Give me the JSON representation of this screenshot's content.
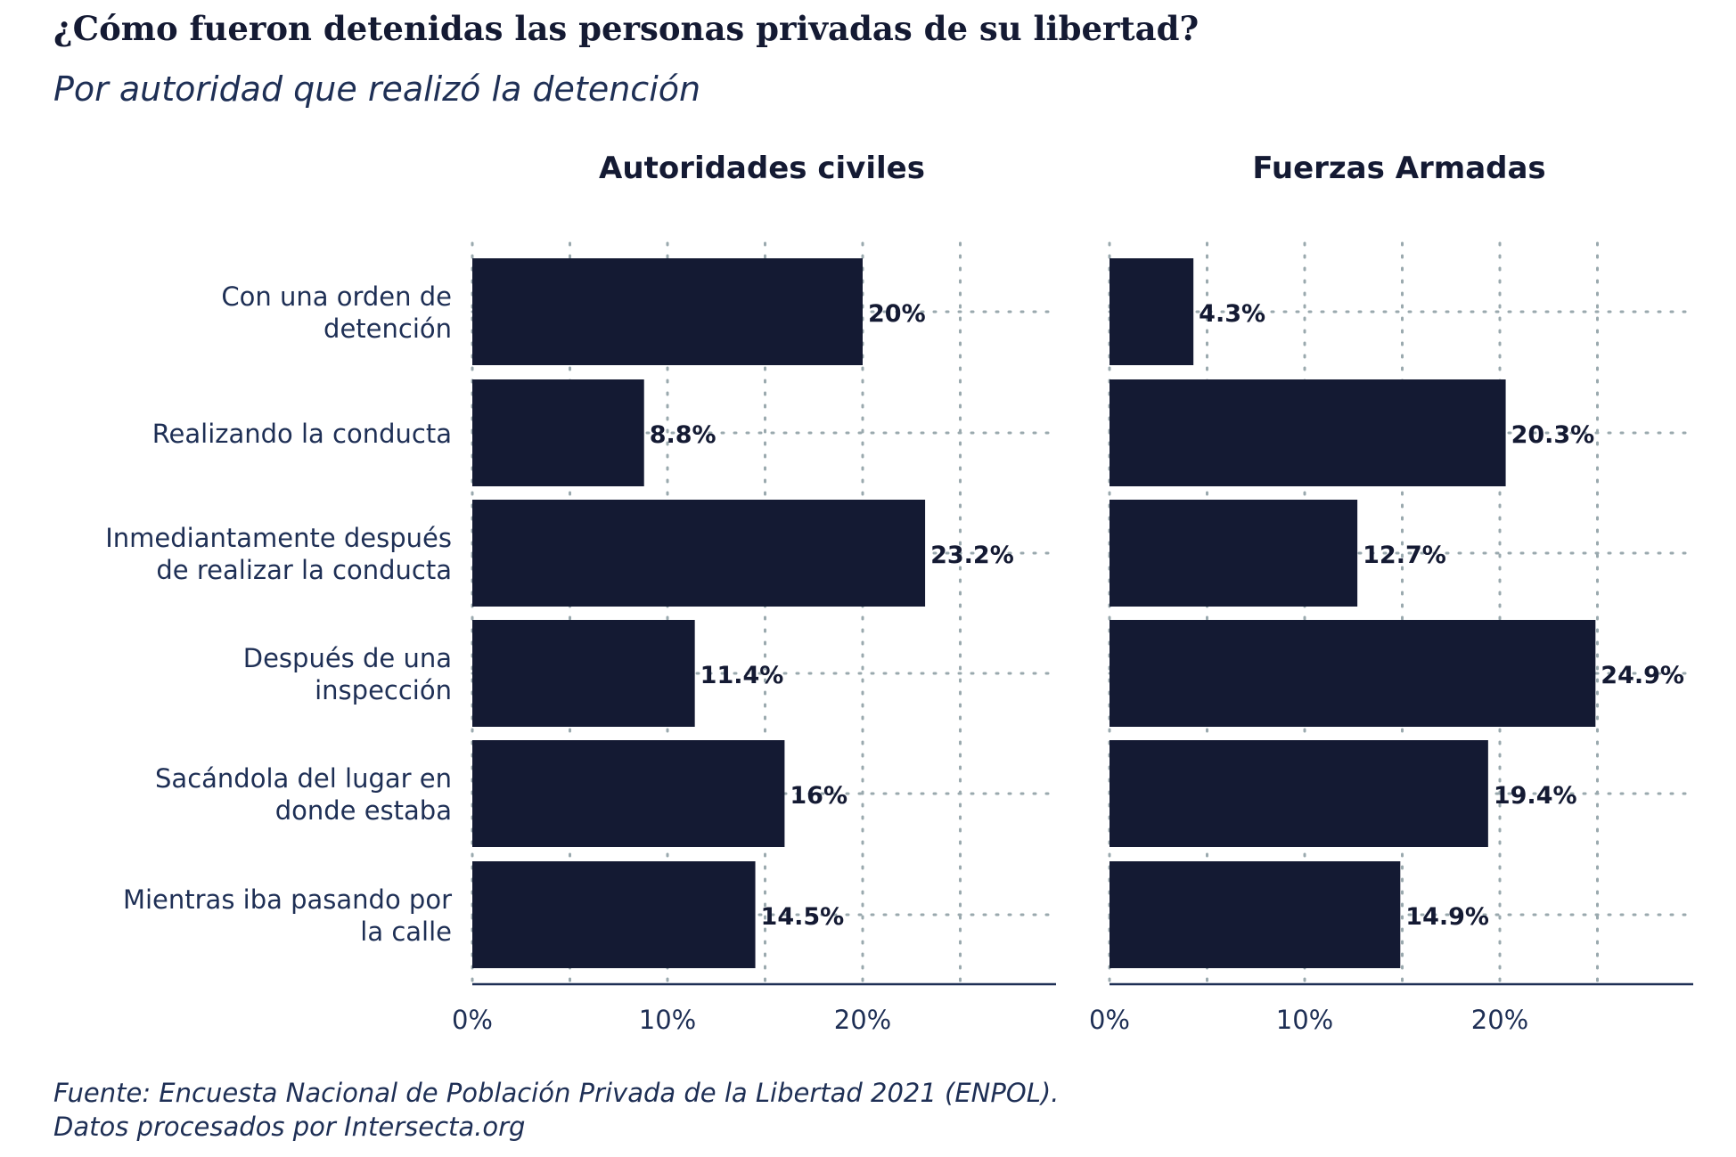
{
  "title": "¿Cómo fueron detenidas las personas privadas de su libertad?",
  "subtitle": "Por autoridad que realizó la detención",
  "caption": {
    "line1": "Fuente: Encuesta Nacional de Población Privada de la Libertad 2021 (ENPOL).",
    "line2": "Datos procesados por Intersecta.org"
  },
  "colors": {
    "bar": "#141a33",
    "grid": "#9aa9ae",
    "axis": "#1e2f55",
    "text": "#1e2f55",
    "value_label": "#141a33"
  },
  "chart_data": {
    "type": "bar",
    "orientation": "horizontal",
    "categories": [
      [
        "Con una orden de",
        "detención"
      ],
      [
        "Realizando la conducta"
      ],
      [
        "Inmediantamente después",
        "de realizar la conducta"
      ],
      [
        "Después de una",
        "inspección"
      ],
      [
        "Sacándola del lugar en",
        "donde estaba"
      ],
      [
        "Mientras iba pasando por",
        "la calle"
      ]
    ],
    "panels": [
      {
        "name": "Autoridades civiles",
        "values": [
          20,
          8.8,
          23.2,
          11.4,
          16,
          14.5
        ],
        "labels": [
          "20%",
          "8.8%",
          "23.2%",
          "11.4%",
          "16%",
          "14.5%"
        ]
      },
      {
        "name": "Fuerzas Armadas",
        "values": [
          4.3,
          20.3,
          12.7,
          24.9,
          19.4,
          14.9
        ],
        "labels": [
          "4.3%",
          "20.3%",
          "12.7%",
          "24.9%",
          "19.4%",
          "14.9%"
        ]
      }
    ],
    "x_ticks": [
      0,
      10,
      20
    ],
    "x_tick_labels": [
      "0%",
      "10%",
      "20%"
    ],
    "xlim": [
      0,
      30
    ],
    "grid": "dotted",
    "legend": "none"
  }
}
